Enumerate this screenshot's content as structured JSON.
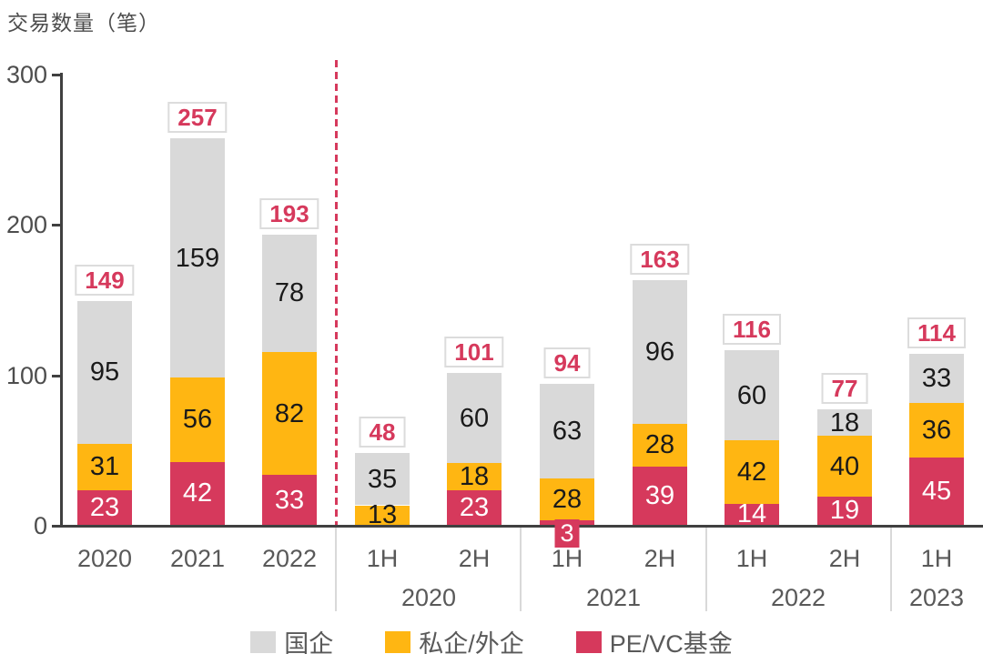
{
  "title": "交易数量（笔）",
  "chart_data": {
    "type": "bar",
    "stacked": true,
    "title": "交易数量（笔）",
    "ylabel": "交易数量（笔）",
    "xlabel": "",
    "ylim": [
      0,
      300
    ],
    "yticks": [
      0,
      100,
      200,
      300
    ],
    "grid": false,
    "legend_position": "bottom",
    "divider_after_index": 2,
    "colors": {
      "国企": "#d9d9d9",
      "私企/外企": "#ffb612",
      "PE/VC基金": "#d6395c",
      "axis": "#404040",
      "total_text": "#d6395c",
      "divider": "#d6395c"
    },
    "series_order_bottom_to_top": [
      "PE/VC基金",
      "私企/外企",
      "国企"
    ],
    "bars": [
      {
        "label": "2020",
        "group": "",
        "segments": [
          {
            "series": "PE/VC基金",
            "value": 23
          },
          {
            "series": "私企/外企",
            "value": 31
          },
          {
            "series": "国企",
            "value": 95
          }
        ],
        "total": 149
      },
      {
        "label": "2021",
        "group": "",
        "segments": [
          {
            "series": "PE/VC基金",
            "value": 42
          },
          {
            "series": "私企/外企",
            "value": 56
          },
          {
            "series": "国企",
            "value": 159
          }
        ],
        "total": 257
      },
      {
        "label": "2022",
        "group": "",
        "segments": [
          {
            "series": "PE/VC基金",
            "value": 33
          },
          {
            "series": "私企/外企",
            "value": 82
          },
          {
            "series": "国企",
            "value": 78
          }
        ],
        "total": 193
      },
      {
        "label": "1H",
        "group": "2020",
        "segments": [
          {
            "series": "私企/外企",
            "value": 13
          },
          {
            "series": "国企",
            "value": 35
          }
        ],
        "total": 48
      },
      {
        "label": "2H",
        "group": "2020",
        "segments": [
          {
            "series": "PE/VC基金",
            "value": 23
          },
          {
            "series": "私企/外企",
            "value": 18
          },
          {
            "series": "国企",
            "value": 60
          }
        ],
        "total": 101
      },
      {
        "label": "1H",
        "group": "2021",
        "segments": [
          {
            "series": "PE/VC基金",
            "value": 3
          },
          {
            "series": "私企/外企",
            "value": 28
          },
          {
            "series": "国企",
            "value": 63
          }
        ],
        "total": 94
      },
      {
        "label": "2H",
        "group": "2021",
        "segments": [
          {
            "series": "PE/VC基金",
            "value": 39
          },
          {
            "series": "私企/外企",
            "value": 28
          },
          {
            "series": "国企",
            "value": 96
          }
        ],
        "total": 163
      },
      {
        "label": "1H",
        "group": "2022",
        "segments": [
          {
            "series": "PE/VC基金",
            "value": 14
          },
          {
            "series": "私企/外企",
            "value": 42
          },
          {
            "series": "国企",
            "value": 60
          }
        ],
        "total": 116
      },
      {
        "label": "2H",
        "group": "2022",
        "segments": [
          {
            "series": "PE/VC基金",
            "value": 19
          },
          {
            "series": "私企/外企",
            "value": 40
          },
          {
            "series": "国企",
            "value": 18
          }
        ],
        "total": 77
      },
      {
        "label": "1H",
        "group": "2023",
        "segments": [
          {
            "series": "PE/VC基金",
            "value": 45
          },
          {
            "series": "私企/外企",
            "value": 36
          },
          {
            "series": "国企",
            "value": 33
          }
        ],
        "total": 114
      }
    ],
    "groups": [
      {
        "label": "2020",
        "from": 3,
        "to": 4
      },
      {
        "label": "2021",
        "from": 5,
        "to": 6
      },
      {
        "label": "2022",
        "from": 7,
        "to": 8
      },
      {
        "label": "2023",
        "from": 9,
        "to": 9
      }
    ],
    "legend": [
      {
        "label": "国企",
        "color": "#d9d9d9"
      },
      {
        "label": "私企/外企",
        "color": "#ffb612"
      },
      {
        "label": "PE/VC基金",
        "color": "#d6395c"
      }
    ]
  }
}
